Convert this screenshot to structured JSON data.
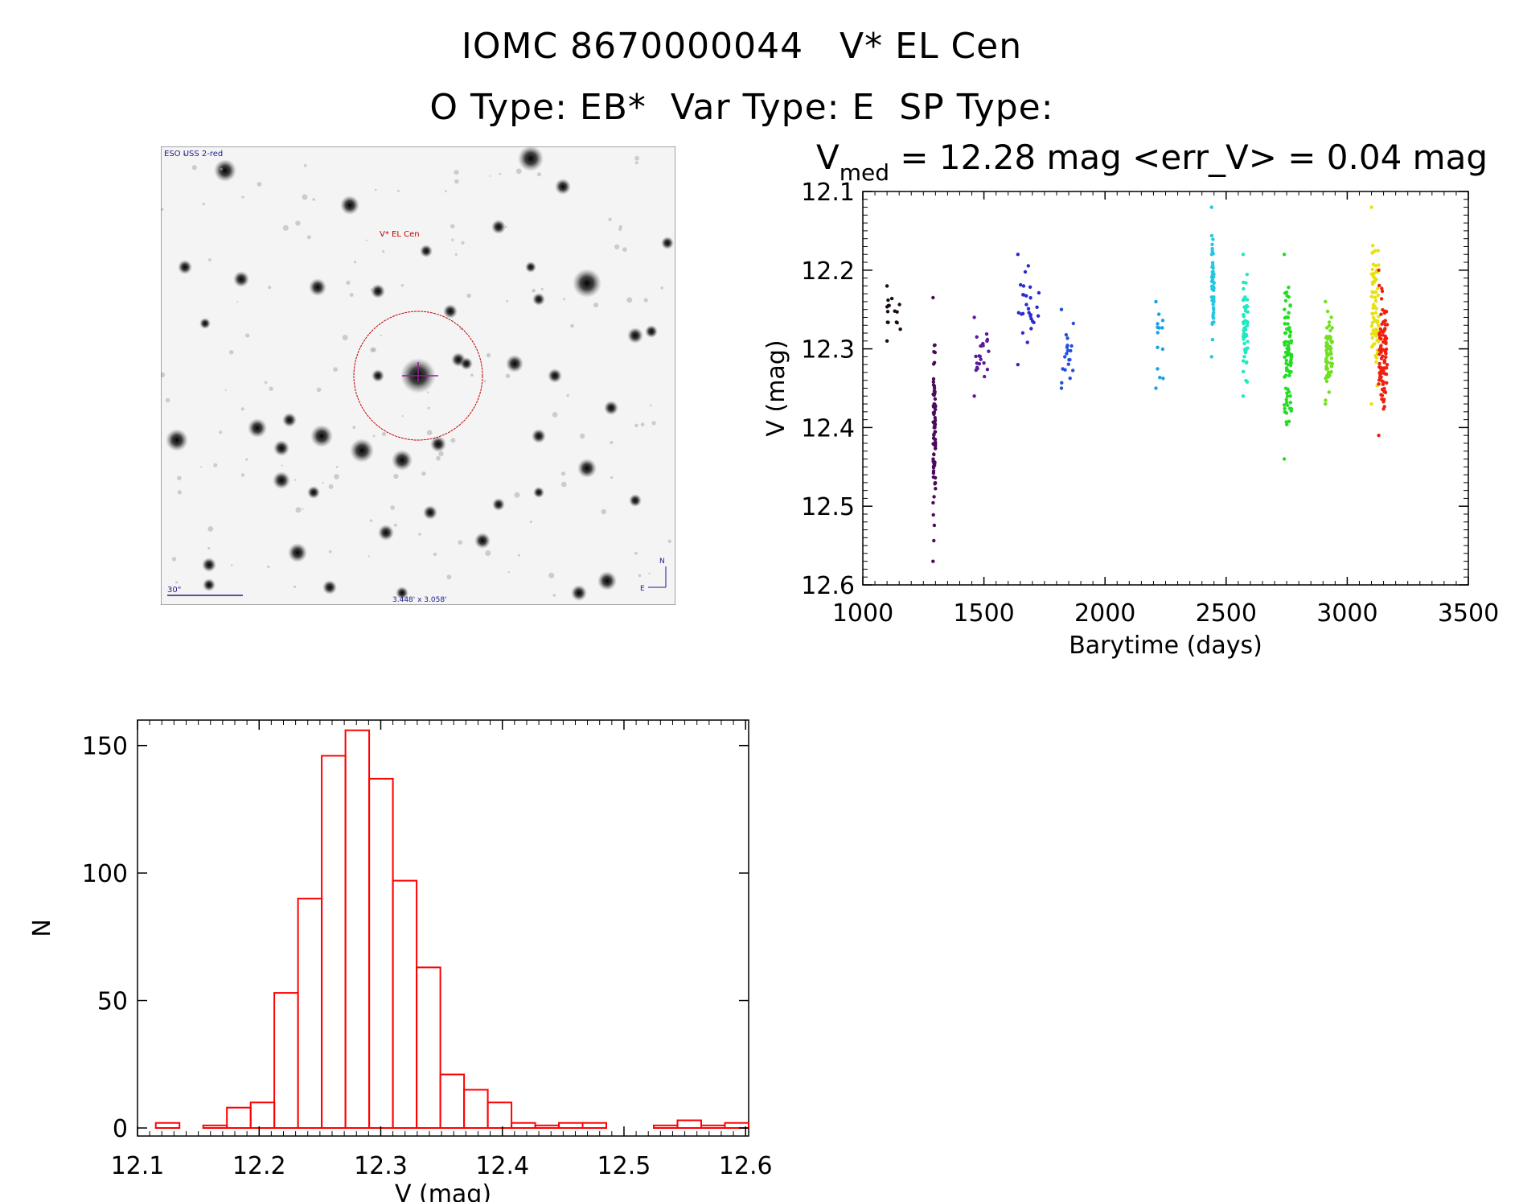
{
  "header": {
    "title_line1": "IOMC 8670000044   V* EL Cen",
    "title_line2": "O Type: EB*  Var Type: E  SP Type:"
  },
  "finder_chart": {
    "survey_label": "ESO USS 2-red",
    "target_label": "V* EL Cen",
    "scale_label": "30\"",
    "fov_label": "3.448' x 3.058'",
    "compass_north": "N",
    "compass_east": "E",
    "colors": {
      "circle": "#c00000",
      "annotation": "#1c1c8c",
      "crosshair": "#9b1b9b"
    }
  },
  "chart_data": [
    {
      "type": "scatter",
      "title_prefix": "V",
      "title_sub": "med",
      "title_rest": " = 12.28 mag <err_V> = 0.04 mag",
      "xlabel": "Barytime (days)",
      "ylabel": "V (mag)",
      "xlim": [
        1000,
        3500
      ],
      "ylim": [
        12.6,
        12.1
      ],
      "xticks": [
        "1000",
        "1500",
        "2000",
        "2500",
        "3000",
        "3500"
      ],
      "yticks": [
        "12.1",
        "12.2",
        "12.3",
        "12.4",
        "12.5",
        "12.6"
      ],
      "clusters": [
        {
          "x": [
            1100,
            1160
          ],
          "ymin": 12.22,
          "ymax": 12.29,
          "n": 14,
          "color": "#1a0a1a"
        },
        {
          "x": [
            1290,
            1300
          ],
          "ymin": 12.235,
          "ymax": 12.57,
          "n": 80,
          "color": "#4b0a5a"
        },
        {
          "x": [
            1460,
            1520
          ],
          "ymin": 12.26,
          "ymax": 12.36,
          "n": 22,
          "color": "#5a1a9a"
        },
        {
          "x": [
            1640,
            1730
          ],
          "ymin": 12.18,
          "ymax": 12.32,
          "n": 26,
          "color": "#2a2ad0"
        },
        {
          "x": [
            1820,
            1870
          ],
          "ymin": 12.25,
          "ymax": 12.35,
          "n": 18,
          "color": "#2050e0"
        },
        {
          "x": [
            2210,
            2240
          ],
          "ymin": 12.24,
          "ymax": 12.35,
          "n": 12,
          "color": "#1aa0e8"
        },
        {
          "x": [
            2440,
            2450
          ],
          "ymin": 12.12,
          "ymax": 12.31,
          "n": 50,
          "color": "#22c8e0"
        },
        {
          "x": [
            2570,
            2590
          ],
          "ymin": 12.18,
          "ymax": 12.36,
          "n": 55,
          "color": "#20e8c0"
        },
        {
          "x": [
            2740,
            2770
          ],
          "ymin": 12.18,
          "ymax": 12.44,
          "n": 85,
          "color": "#22dd22"
        },
        {
          "x": [
            2910,
            2940
          ],
          "ymin": 12.24,
          "ymax": 12.37,
          "n": 60,
          "color": "#70e020"
        },
        {
          "x": [
            3100,
            3130
          ],
          "ymin": 12.12,
          "ymax": 12.37,
          "n": 70,
          "color": "#e8e010"
        },
        {
          "x": [
            3130,
            3165
          ],
          "ymin": 12.2,
          "ymax": 12.41,
          "n": 90,
          "color": "#ee2010"
        }
      ]
    },
    {
      "type": "bar",
      "xlabel": "V (mag)",
      "ylabel": "N",
      "xlim": [
        12.1,
        12.6
      ],
      "ylim": [
        0,
        160
      ],
      "xticks": [
        "12.1",
        "12.2",
        "12.3",
        "12.4",
        "12.5",
        "12.6"
      ],
      "yticks": [
        "0",
        "50",
        "100",
        "150"
      ],
      "bin_start": 12.115,
      "bin_width": 0.0195,
      "values": [
        2,
        0,
        1,
        8,
        10,
        53,
        90,
        146,
        156,
        137,
        97,
        63,
        21,
        15,
        10,
        2,
        1,
        2,
        2,
        0,
        0,
        1,
        3,
        1,
        2
      ],
      "color": "#ff0000"
    }
  ]
}
